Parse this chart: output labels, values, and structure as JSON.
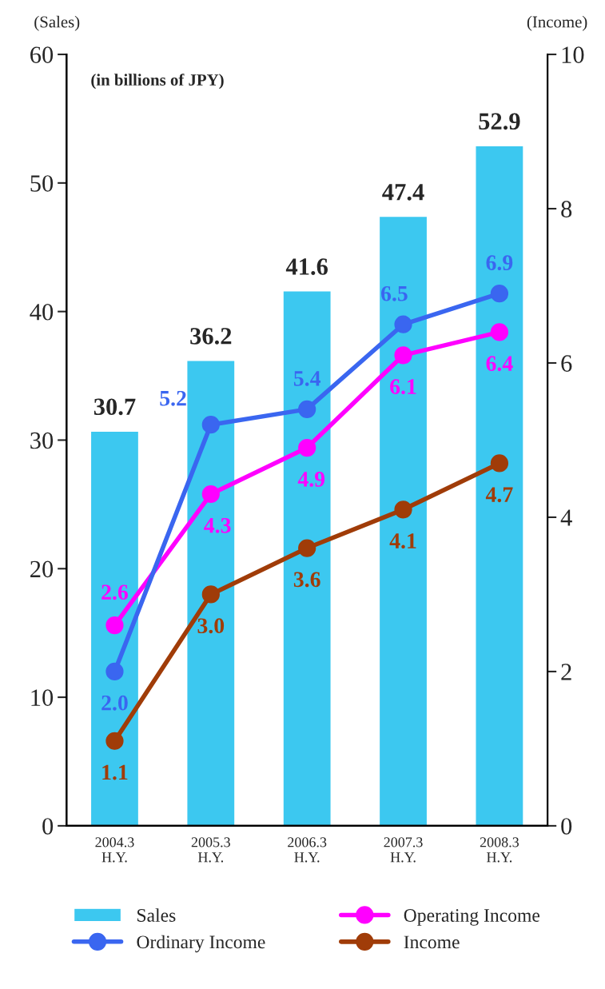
{
  "chart_data": {
    "type": "bar",
    "categories": [
      "2004.3\nH.Y.",
      "2005.3\nH.Y.",
      "2006.3\nH.Y.",
      "2007.3\nH.Y.",
      "2008.3\nH.Y."
    ],
    "ylabel": "(Sales)",
    "y2label": "(Income)",
    "annotations": [
      "(in billions of JPY)"
    ],
    "series": [
      {
        "name": "Sales",
        "color": "#3cc8f0",
        "values": [
          30.7,
          36.2,
          41.6,
          47.4,
          52.9
        ],
        "value_labels": [
          "30.7",
          "36.2",
          "41.6",
          "47.4",
          "52.9"
        ]
      },
      {
        "name": "Operating Income",
        "type": "line",
        "axis": "y2",
        "color": "#ff00ff",
        "values": [
          2.6,
          4.3,
          4.9,
          6.1,
          6.4
        ],
        "value_labels": [
          "2.6",
          "4.3",
          "4.9",
          "6.1",
          "6.4"
        ]
      },
      {
        "name": "Ordinary Income",
        "type": "line",
        "axis": "y2",
        "color": "#3a66f0",
        "values": [
          2.0,
          5.2,
          5.4,
          6.5,
          6.9
        ],
        "value_labels": [
          "2.0",
          "5.2",
          "5.4",
          "6.5",
          "6.9"
        ]
      },
      {
        "name": "Income",
        "type": "line",
        "axis": "y2",
        "color": "#a03c08",
        "values": [
          1.1,
          3.0,
          3.6,
          4.1,
          4.7
        ],
        "value_labels": [
          "1.1",
          "3.0",
          "3.6",
          "4.1",
          "4.7"
        ]
      }
    ],
    "ylim": [
      0,
      60
    ],
    "yticks": [
      0,
      10,
      20,
      30,
      40,
      50,
      60
    ],
    "y2lim": [
      0,
      10
    ],
    "y2ticks": [
      0,
      2,
      4,
      6,
      8,
      10
    ],
    "marker": "circle",
    "line_style": "solid",
    "grid": false,
    "legend": "bottom"
  }
}
